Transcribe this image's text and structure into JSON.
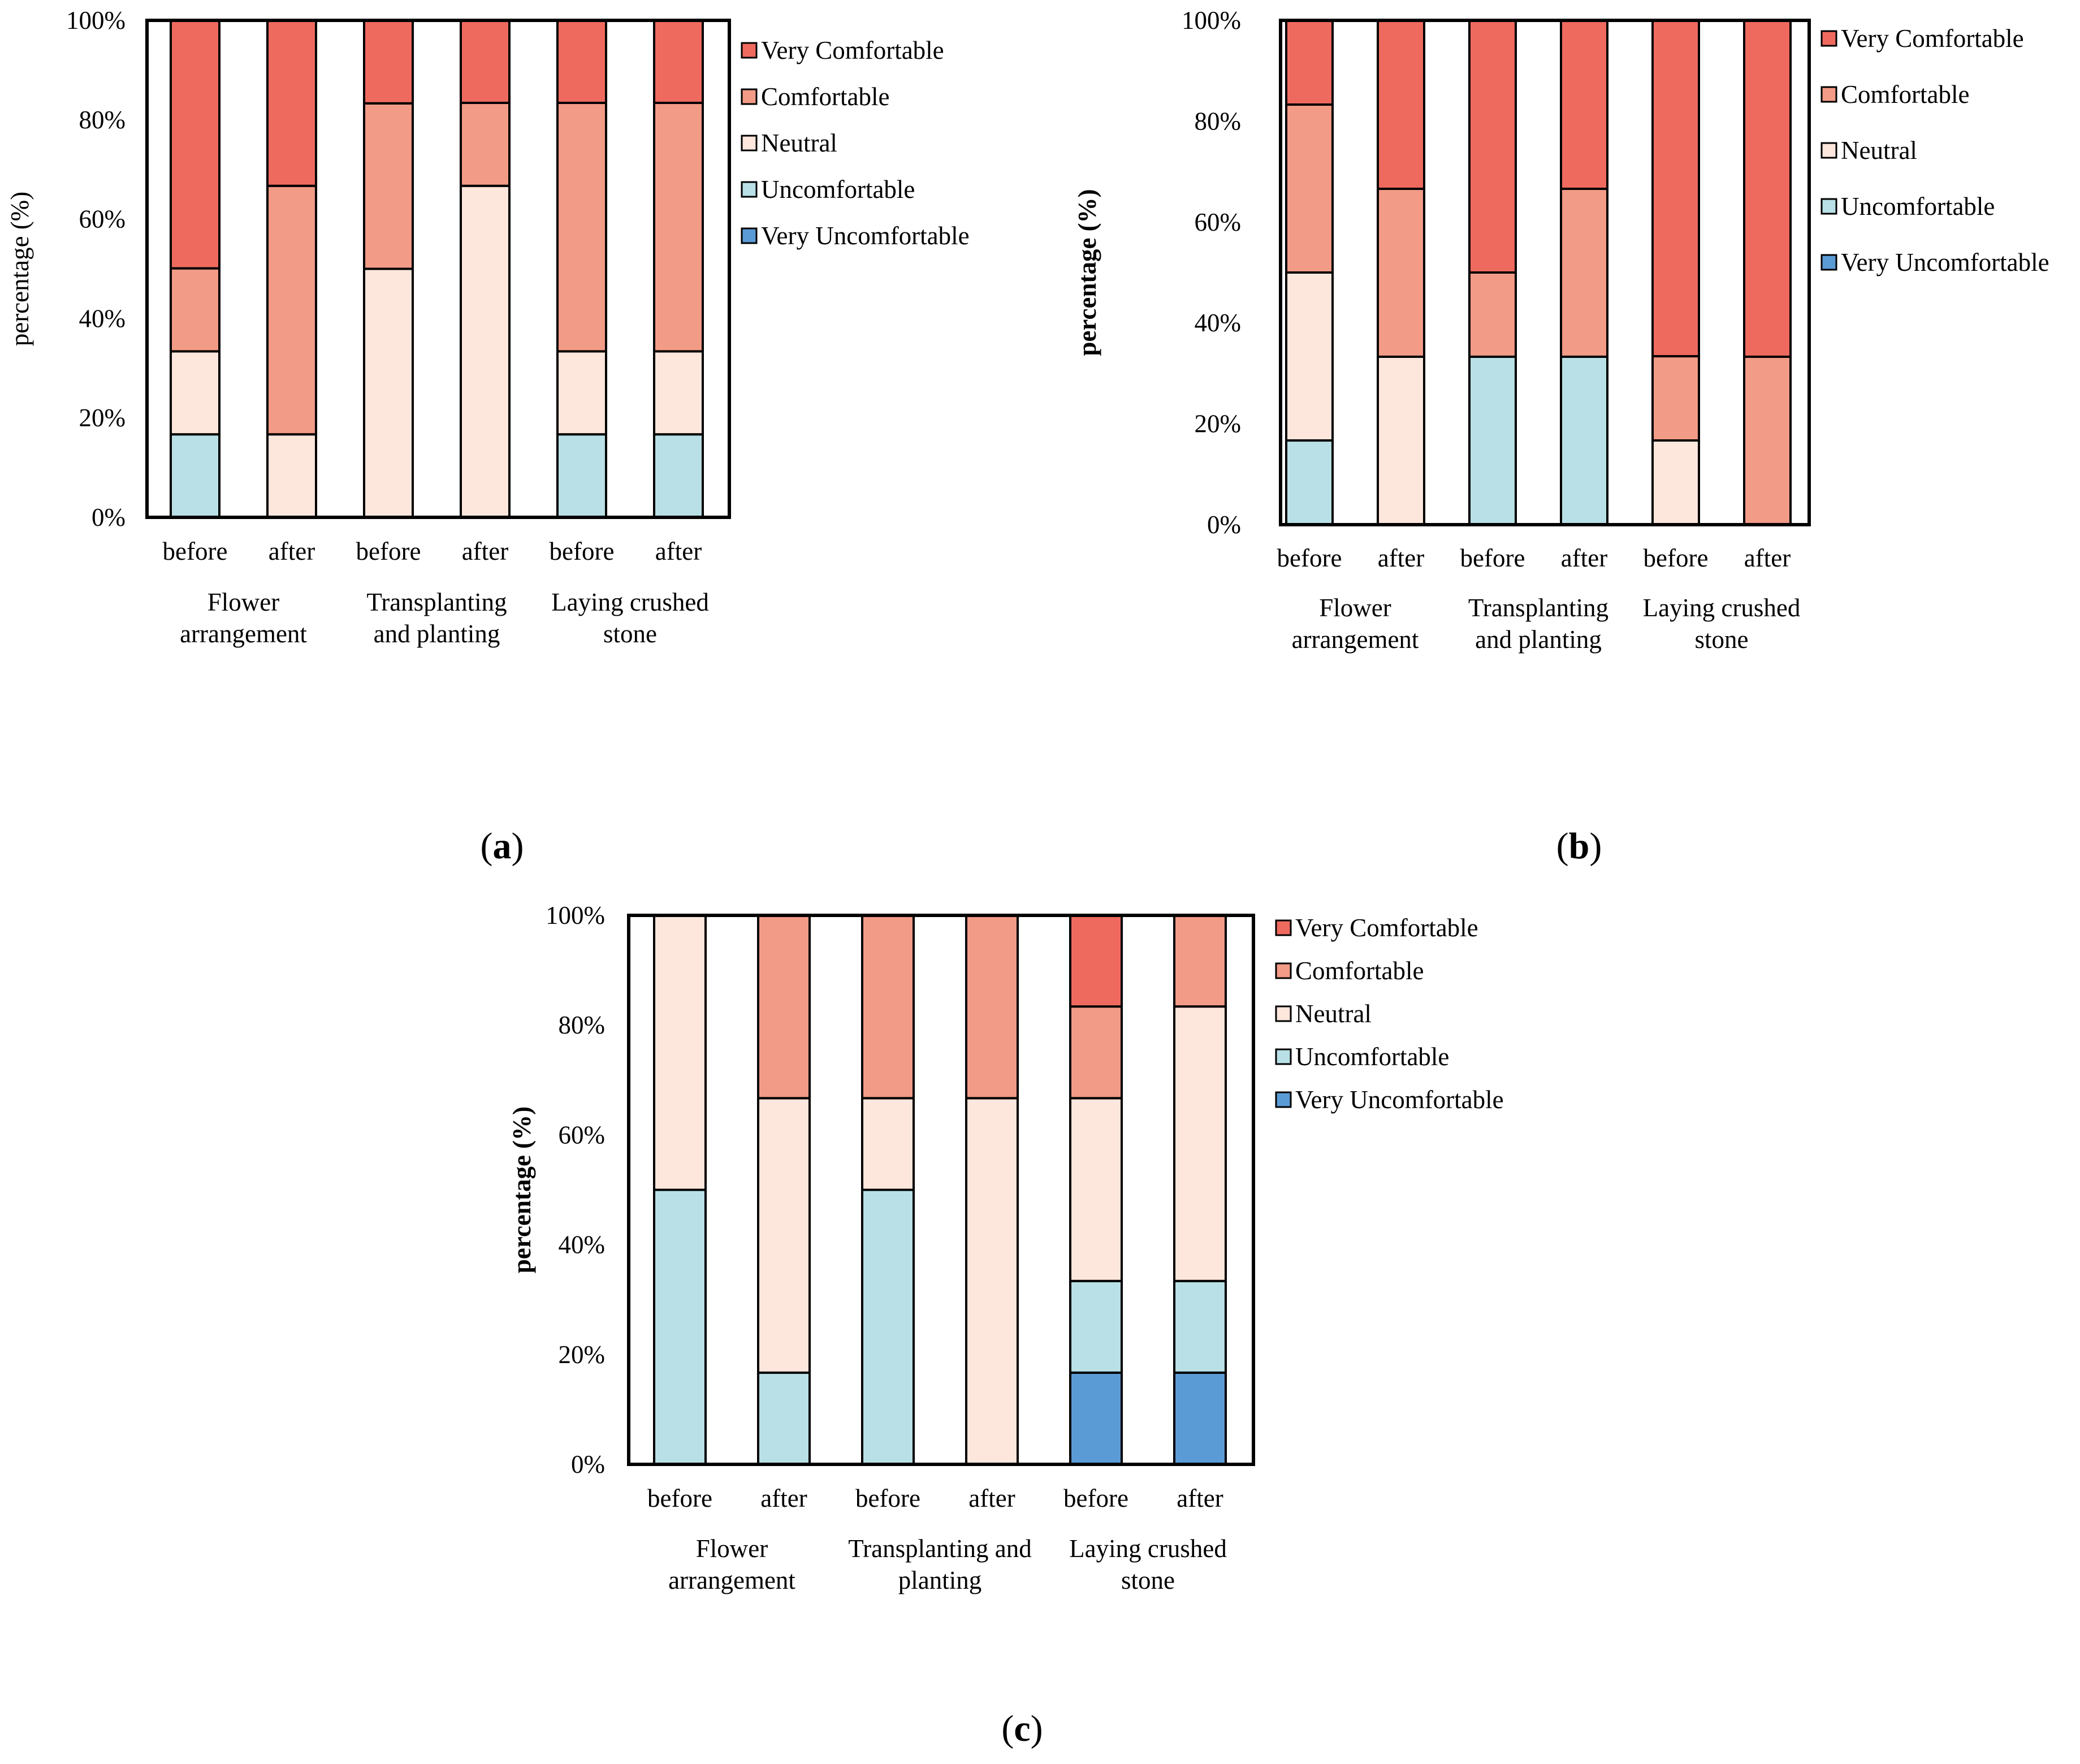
{
  "colors": {
    "Very Comfortable": "#ef6a5e",
    "Comfortable": "#f29b86",
    "Neutral": "#fde6dc",
    "Uncomfortable": "#b8e0e6",
    "Very Uncomfortable": "#5b9bd5"
  },
  "chart_data": [
    {
      "type": "bar",
      "stacked": true,
      "panel_label": "(a)",
      "ylabel": "percentage (%)",
      "ylim": [
        0,
        100
      ],
      "yticks": [
        "0%",
        "20%",
        "40%",
        "60%",
        "80%",
        "100%"
      ],
      "categories": [
        "before",
        "after",
        "before",
        "after",
        "before",
        "after"
      ],
      "groups": [
        "Flower\narrangement",
        "Transplanting\nand planting",
        "Laying crushed\nstone"
      ],
      "legend_position": "right",
      "series": [
        {
          "name": "Very Uncomfortable",
          "values": [
            0,
            0,
            0,
            0,
            0,
            0
          ]
        },
        {
          "name": "Uncomfortable",
          "values": [
            16.7,
            0,
            0,
            0,
            16.7,
            16.7
          ]
        },
        {
          "name": "Neutral",
          "values": [
            16.7,
            16.7,
            50,
            66.7,
            16.7,
            16.7
          ]
        },
        {
          "name": "Comfortable",
          "values": [
            16.7,
            50,
            33.3,
            16.7,
            50,
            50
          ]
        },
        {
          "name": "Very Comfortable",
          "values": [
            50,
            33.3,
            16.7,
            16.7,
            16.7,
            16.7
          ]
        }
      ]
    },
    {
      "type": "bar",
      "stacked": true,
      "panel_label": "(b)",
      "ylabel": "percentage (%)",
      "ylim": [
        0,
        100
      ],
      "yticks": [
        "0%",
        "20%",
        "40%",
        "60%",
        "80%",
        "100%"
      ],
      "categories": [
        "before",
        "after",
        "before",
        "after",
        "before",
        "after"
      ],
      "groups": [
        "Flower\narrangement",
        "Transplanting\nand planting",
        "Laying crushed\nstone"
      ],
      "legend_position": "right",
      "series": [
        {
          "name": "Very Uncomfortable",
          "values": [
            0,
            0,
            0,
            0,
            0,
            0
          ]
        },
        {
          "name": "Uncomfortable",
          "values": [
            16.7,
            0,
            33.3,
            33.3,
            0,
            0
          ]
        },
        {
          "name": "Neutral",
          "values": [
            33.3,
            33.3,
            0,
            0,
            16.7,
            0
          ]
        },
        {
          "name": "Comfortable",
          "values": [
            33.3,
            33.3,
            16.7,
            33.3,
            16.7,
            33.3
          ]
        },
        {
          "name": "Very Comfortable",
          "values": [
            16.7,
            33.3,
            50,
            33.3,
            66.7,
            66.7
          ]
        }
      ]
    },
    {
      "type": "bar",
      "stacked": true,
      "panel_label": "(c)",
      "ylabel": "percentage (%)",
      "ylim": [
        0,
        100
      ],
      "yticks": [
        "0%",
        "20%",
        "40%",
        "60%",
        "80%",
        "100%"
      ],
      "categories": [
        "before",
        "after",
        "before",
        "after",
        "before",
        "after"
      ],
      "groups": [
        "Flower\narrangement",
        "Transplanting and\nplanting",
        "Laying crushed\nstone"
      ],
      "legend_position": "right",
      "series": [
        {
          "name": "Very Uncomfortable",
          "values": [
            0,
            0,
            0,
            0,
            16.7,
            16.7
          ]
        },
        {
          "name": "Uncomfortable",
          "values": [
            50,
            16.7,
            50,
            0,
            16.7,
            16.7
          ]
        },
        {
          "name": "Neutral",
          "values": [
            50,
            50,
            16.7,
            66.7,
            33.3,
            50
          ]
        },
        {
          "name": "Comfortable",
          "values": [
            0,
            33.3,
            33.3,
            33.3,
            16.7,
            16.7
          ]
        },
        {
          "name": "Very Comfortable",
          "values": [
            0,
            0,
            0,
            0,
            16.7,
            0
          ]
        }
      ]
    }
  ]
}
